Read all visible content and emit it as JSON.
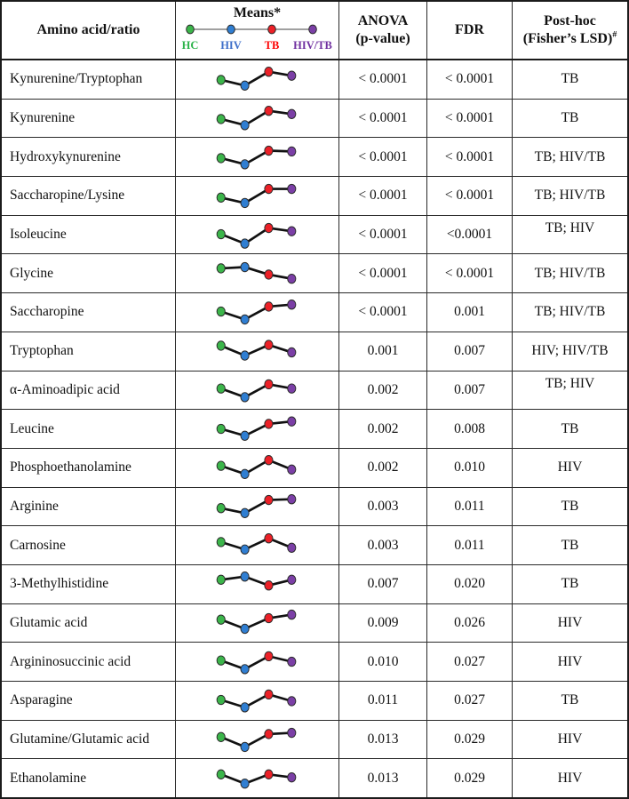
{
  "table": {
    "header": {
      "col_amino": "Amino acid/ratio",
      "means_title": "Means*",
      "anova_line1": "ANOVA",
      "anova_line2": "(p-value)",
      "fdr": "FDR",
      "posthoc_line1": "Post-hoc",
      "posthoc_line2": "(Fisher’s LSD)",
      "posthoc_sup": "#",
      "groups": [
        {
          "label": "HC",
          "text_color": "#2cb34a",
          "dot_color": "#3bb54a"
        },
        {
          "label": "HIV",
          "text_color": "#3e6fc9",
          "dot_color": "#2f7ed2"
        },
        {
          "label": "TB",
          "text_color": "#fd0000",
          "dot_color": "#ec2027"
        },
        {
          "label": "HIV/TB",
          "text_color": "#7030a0",
          "dot_color": "#7b3fa6"
        }
      ]
    },
    "style": {
      "line_color": "#111111",
      "dot_stroke": "#2b2b2b",
      "legend_line_color": "#808080"
    },
    "rows": [
      {
        "name": "Kynurenine/Tryptophan",
        "means": [
          0.45,
          0.22,
          0.78,
          0.62
        ],
        "anova": "< 0.0001",
        "fdr": "< 0.0001",
        "posthoc": "TB"
      },
      {
        "name": "Kynurenine",
        "means": [
          0.45,
          0.2,
          0.78,
          0.65
        ],
        "anova": "< 0.0001",
        "fdr": "< 0.0001",
        "posthoc": "TB"
      },
      {
        "name": "Hydroxykynurenine",
        "means": [
          0.45,
          0.2,
          0.75,
          0.72
        ],
        "anova": "< 0.0001",
        "fdr": "< 0.0001",
        "posthoc": "TB; HIV/TB"
      },
      {
        "name": "Saccharopine/Lysine",
        "means": [
          0.4,
          0.18,
          0.75,
          0.75
        ],
        "anova": "< 0.0001",
        "fdr": "< 0.0001",
        "posthoc": "TB; HIV/TB"
      },
      {
        "name": "Isoleucine",
        "means": [
          0.5,
          0.12,
          0.75,
          0.62
        ],
        "anova": "< 0.0001",
        "fdr": "<0.0001",
        "posthoc": "TB; HIV",
        "posthoc_raised": true
      },
      {
        "name": "Glycine",
        "means": [
          0.7,
          0.75,
          0.45,
          0.28
        ],
        "anova": "< 0.0001",
        "fdr": "< 0.0001",
        "posthoc": "TB; HIV/TB"
      },
      {
        "name": "Saccharopine",
        "means": [
          0.5,
          0.18,
          0.7,
          0.78
        ],
        "anova": "< 0.0001",
        "fdr": "0.001",
        "posthoc": "TB; HIV/TB"
      },
      {
        "name": "Tryptophan",
        "means": [
          0.7,
          0.3,
          0.73,
          0.43
        ],
        "anova": "0.001",
        "fdr": "0.007",
        "posthoc": "HIV; HIV/TB"
      },
      {
        "name": "α-Aminoadipic acid",
        "means": [
          0.55,
          0.2,
          0.72,
          0.55
        ],
        "anova": "0.002",
        "fdr": "0.007",
        "posthoc": "TB; HIV",
        "posthoc_raised": true
      },
      {
        "name": "Leucine",
        "means": [
          0.5,
          0.22,
          0.7,
          0.8
        ],
        "anova": "0.002",
        "fdr": "0.008",
        "posthoc": "TB"
      },
      {
        "name": "Phosphoethanolamine",
        "means": [
          0.55,
          0.22,
          0.78,
          0.4
        ],
        "anova": "0.002",
        "fdr": "0.010",
        "posthoc": "HIV"
      },
      {
        "name": "Arginine",
        "means": [
          0.42,
          0.22,
          0.75,
          0.78
        ],
        "anova": "0.003",
        "fdr": "0.011",
        "posthoc": "TB"
      },
      {
        "name": "Carnosine",
        "means": [
          0.63,
          0.33,
          0.78,
          0.4
        ],
        "anova": "0.003",
        "fdr": "0.011",
        "posthoc": "TB"
      },
      {
        "name": "3-Methylhistidine",
        "means": [
          0.65,
          0.78,
          0.42,
          0.65
        ],
        "anova": "0.007",
        "fdr": "0.020",
        "posthoc": "TB"
      },
      {
        "name": "Glutamic acid",
        "means": [
          0.62,
          0.25,
          0.68,
          0.82
        ],
        "anova": "0.009",
        "fdr": "0.026",
        "posthoc": "HIV"
      },
      {
        "name": "Argininosuccinic acid",
        "means": [
          0.55,
          0.2,
          0.72,
          0.5
        ],
        "anova": "0.010",
        "fdr": "0.027",
        "posthoc": "HIV"
      },
      {
        "name": "Asparagine",
        "means": [
          0.5,
          0.2,
          0.72,
          0.45
        ],
        "anova": "0.011",
        "fdr": "0.027",
        "posthoc": "TB"
      },
      {
        "name": "Glutamine/Glutamic acid",
        "means": [
          0.58,
          0.18,
          0.7,
          0.75
        ],
        "anova": "0.013",
        "fdr": "0.029",
        "posthoc": "HIV"
      },
      {
        "name": "Ethanolamine",
        "means": [
          0.65,
          0.28,
          0.65,
          0.53
        ],
        "anova": "0.013",
        "fdr": "0.029",
        "posthoc": "HIV"
      }
    ]
  }
}
